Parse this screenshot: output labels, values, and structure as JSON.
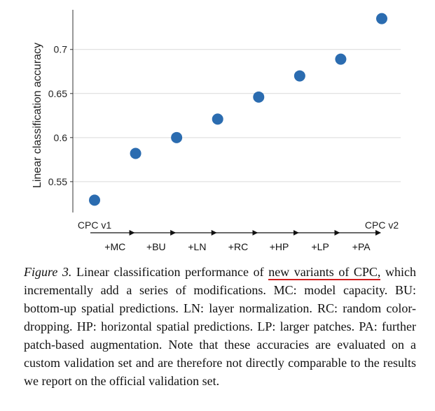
{
  "chart_data": {
    "type": "scatter",
    "title": "",
    "ylabel": "Linear classification accuracy",
    "xlabel": "",
    "ylim": [
      0.515,
      0.745
    ],
    "yticks": [
      0.55,
      0.6,
      0.65,
      0.7
    ],
    "ytick_labels": [
      "0.55",
      "0.6",
      "0.65",
      "0.7"
    ],
    "grid": true,
    "points": [
      {
        "x": 0,
        "y": 0.529
      },
      {
        "x": 1,
        "y": 0.582
      },
      {
        "x": 2,
        "y": 0.6
      },
      {
        "x": 3,
        "y": 0.621
      },
      {
        "x": 4,
        "y": 0.646
      },
      {
        "x": 5,
        "y": 0.67
      },
      {
        "x": 6,
        "y": 0.689
      },
      {
        "x": 7,
        "y": 0.735
      }
    ],
    "start_label": "CPC v1",
    "end_label": "CPC v2",
    "steps": [
      "+MC",
      "+BU",
      "+LN",
      "+RC",
      "+HP",
      "+LP",
      "+PA"
    ],
    "point_color": "#2b6cb0"
  },
  "caption": {
    "figure_label": "Figure 3.",
    "text_before": " Linear classification performance of ",
    "highlight": "new variants of CPC,",
    "text_after": " which incrementally add a series of modifications. MC: model capacity. BU: bottom-up spatial predictions. LN: layer normalization. RC: random color-dropping. HP: horizontal spatial predictions. LP: larger patches. PA: further patch-based augmentation. Note that these accuracies are evaluated on a custom validation set and are therefore not directly comparable to the results we report on the official validation set."
  }
}
